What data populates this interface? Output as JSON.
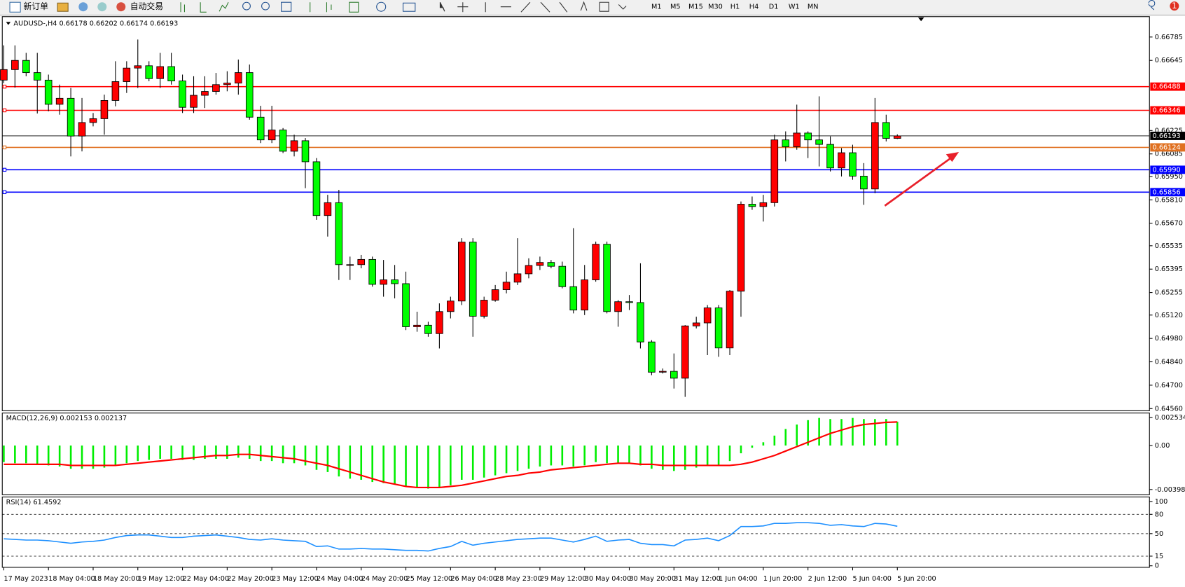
{
  "toolbar": {
    "new_order": "新订单",
    "auto_trading": "自动交易",
    "timeframes": [
      "M1",
      "M5",
      "M15",
      "M30",
      "H1",
      "H4",
      "D1",
      "W1",
      "MN"
    ],
    "badge": 1
  },
  "chart_data": [
    {
      "type": "candlestick",
      "title": "AUDUSD-,H4",
      "up_color": "#ff0000",
      "down_color": "#00ff00",
      "categories": [
        "17 May 2023",
        null,
        null,
        null,
        "18 May 04:00",
        null,
        null,
        null,
        "18 May 20:00",
        null,
        null,
        null,
        "19 May 12:00",
        null,
        null,
        null,
        "22 May 04:00",
        null,
        null,
        null,
        "22 May 20:00",
        null,
        null,
        null,
        "23 May 12:00",
        null,
        null,
        null,
        "24 May 04:00",
        null,
        null,
        null,
        "24 May 20:00",
        null,
        null,
        null,
        "25 May 12:00",
        null,
        null,
        null,
        "26 May 04:00",
        null,
        null,
        null,
        "28 May 23:00",
        null,
        null,
        null,
        "29 May 12:00",
        null,
        null,
        null,
        "30 May 04:00",
        null,
        null,
        null,
        "30 May 20:00",
        null,
        null,
        null,
        "31 May 12:00",
        null,
        null,
        null,
        "1 Jun 04:00",
        null,
        null,
        null,
        "1 Jun 20:00",
        null,
        null,
        null,
        "2 Jun 12:00",
        null,
        null,
        null,
        "5 Jun 04:00",
        null,
        null,
        null,
        "5 Jun 20:00"
      ],
      "open": [
        0.66527,
        0.6659,
        0.66645,
        0.66572,
        0.66527,
        0.66382,
        0.66418,
        0.66192,
        0.66273,
        0.66296,
        0.66405,
        0.66518,
        0.66599,
        0.66613,
        0.66536,
        0.66608,
        0.66522,
        0.66364,
        0.66436,
        0.66459,
        0.665,
        0.66509,
        0.66572,
        0.66305,
        0.66169,
        0.66228,
        0.66101,
        0.66164,
        0.66038,
        0.65716,
        0.65793,
        0.65422,
        0.65422,
        0.65453,
        0.65304,
        0.65331,
        0.65308,
        0.6505,
        0.65059,
        0.65009,
        0.65141,
        0.65204,
        0.65557,
        0.65113,
        0.65209,
        0.65272,
        0.65317,
        0.65367,
        0.65417,
        0.65435,
        0.65412,
        0.6529,
        0.6515,
        0.65331,
        0.65544,
        0.65141,
        0.652,
        0.65195,
        0.64959,
        0.64778,
        0.64783,
        0.64742,
        0.65055,
        0.65073,
        0.65163,
        0.64923,
        0.65263,
        0.65784,
        0.6577,
        0.65793,
        0.66169,
        0.66128,
        0.6621,
        0.66169,
        0.66142,
        0.66001,
        0.66092,
        0.65952,
        0.65875,
        0.66273,
        0.66178
      ],
      "high": [
        0.66735,
        0.66735,
        0.6669,
        0.6669,
        0.6656,
        0.665,
        0.6648,
        0.6642,
        0.6633,
        0.6644,
        0.6664,
        0.6664,
        0.6677,
        0.6664,
        0.6669,
        0.6669,
        0.6656,
        0.6655,
        0.6655,
        0.6657,
        0.6658,
        0.6665,
        0.6662,
        0.66373,
        0.66373,
        0.6624,
        0.662,
        0.6618,
        0.6606,
        0.6584,
        0.6587,
        0.6547,
        0.6548,
        0.6547,
        0.6545,
        0.6542,
        0.6538,
        0.6514,
        0.6508,
        0.6519,
        0.6523,
        0.6558,
        0.6558,
        0.6523,
        0.653,
        0.6538,
        0.6558,
        0.6546,
        0.6547,
        0.6545,
        0.6544,
        0.6564,
        0.6542,
        0.6556,
        0.6556,
        0.6521,
        0.6524,
        0.6543,
        0.6497,
        0.648,
        0.6489,
        0.6506,
        0.6511,
        0.6518,
        0.6518,
        0.6527,
        0.658,
        0.6583,
        0.6584,
        0.662,
        0.6622,
        0.6638,
        0.6622,
        0.6643,
        0.6619,
        0.6612,
        0.6614,
        0.6603,
        0.6642,
        0.6632,
        0.66202
      ],
      "low": [
        0.66509,
        0.66482,
        0.6655,
        0.66327,
        0.6634,
        0.6632,
        0.6607,
        0.661,
        0.6625,
        0.662,
        0.6637,
        0.6645,
        0.6648,
        0.6652,
        0.6648,
        0.665,
        0.6633,
        0.6633,
        0.6636,
        0.6644,
        0.6646,
        0.6644,
        0.6629,
        0.6615,
        0.6615,
        0.6609,
        0.6607,
        0.6588,
        0.6569,
        0.6559,
        0.6533,
        0.6533,
        0.654,
        0.6529,
        0.6523,
        0.6522,
        0.6503,
        0.6502,
        0.6499,
        0.6492,
        0.651,
        0.6518,
        0.6499,
        0.651,
        0.652,
        0.6525,
        0.653,
        0.6534,
        0.6539,
        0.654,
        0.6528,
        0.6513,
        0.6512,
        0.6532,
        0.6513,
        0.6505,
        0.6515,
        0.6492,
        0.6476,
        0.6477,
        0.6468,
        0.6463,
        0.6504,
        0.6488,
        0.6487,
        0.6488,
        0.6511,
        0.6575,
        0.6568,
        0.6577,
        0.6604,
        0.6611,
        0.6606,
        0.6601,
        0.6598,
        0.6595,
        0.6593,
        0.6578,
        0.6585,
        0.6616,
        0.66174
      ],
      "close": [
        0.6659,
        0.66645,
        0.66572,
        0.66527,
        0.66382,
        0.66418,
        0.66192,
        0.66273,
        0.66296,
        0.66405,
        0.66518,
        0.66599,
        0.66613,
        0.66536,
        0.66608,
        0.66522,
        0.66364,
        0.66436,
        0.66459,
        0.665,
        0.66509,
        0.66572,
        0.66305,
        0.66169,
        0.66228,
        0.66101,
        0.66164,
        0.66038,
        0.65716,
        0.65793,
        0.65422,
        0.65422,
        0.65453,
        0.65304,
        0.65331,
        0.65308,
        0.6505,
        0.65059,
        0.65009,
        0.65141,
        0.65204,
        0.65557,
        0.65113,
        0.65209,
        0.65272,
        0.65317,
        0.65367,
        0.65417,
        0.65435,
        0.65412,
        0.6529,
        0.6515,
        0.65331,
        0.65544,
        0.65141,
        0.652,
        0.65195,
        0.64959,
        0.64778,
        0.64783,
        0.64742,
        0.65055,
        0.65073,
        0.65163,
        0.64923,
        0.65263,
        0.65784,
        0.6577,
        0.65793,
        0.66169,
        0.66128,
        0.6621,
        0.66169,
        0.66142,
        0.66001,
        0.66092,
        0.65952,
        0.65875,
        0.66273,
        0.66178,
        0.66193
      ],
      "ylim": [
        0.64547,
        0.66907
      ],
      "yticks": [
        0.66785,
        0.66645,
        0.66225,
        0.66085,
        {
          "value": 0.6595,
          "label": "0.65950"
        },
        {
          "value": 0.6581,
          "label": "0.65810"
        },
        {
          "value": 0.6567,
          "label": "0.65670"
        },
        0.65535,
        0.65395,
        0.65255,
        {
          "value": 0.6512,
          "label": "0.65120"
        },
        {
          "value": 0.6498,
          "label": "0.64980"
        },
        {
          "value": 0.6484,
          "label": "0.64840"
        },
        {
          "value": 0.647,
          "label": "0.64700"
        },
        {
          "value": 0.6456,
          "label": "0.64560"
        }
      ],
      "levels": [
        {
          "value": 0.66488,
          "color": "#ff0000"
        },
        {
          "value": 0.66346,
          "color": "#ff0000"
        },
        {
          "value": 0.66124,
          "color": "#e07020"
        },
        {
          "value": 0.6599,
          "label": "0.65990",
          "color": "#0000ff"
        },
        {
          "value": 0.65856,
          "color": "#0000ff"
        }
      ],
      "price_line_color": "#000000"
    },
    {
      "type": "macd",
      "title": "MACD(12,26,9)",
      "histogram": {
        "color": "#00ee00",
        "values": [
          -0.0015,
          -0.0016,
          -0.0016,
          -0.0017,
          -0.0018,
          -0.0019,
          -0.0021,
          -0.0021,
          -0.0021,
          -0.002,
          -0.0018,
          -0.0016,
          -0.0014,
          -0.0013,
          -0.0012,
          -0.0012,
          -0.0013,
          -0.0013,
          -0.0012,
          -0.0012,
          -0.0012,
          -0.0011,
          -0.0012,
          -0.0014,
          -0.0014,
          -0.0016,
          -0.0016,
          -0.0018,
          -0.0022,
          -0.0024,
          -0.0028,
          -0.003,
          -0.0031,
          -0.0033,
          -0.0034,
          -0.0035,
          -0.0037,
          -0.0038,
          -0.0039,
          -0.0038,
          -0.0036,
          -0.0031,
          -0.0031,
          -0.0029,
          -0.0027,
          -0.0025,
          -0.0023,
          -0.0021,
          -0.0019,
          -0.0018,
          -0.0018,
          -0.0019,
          -0.0018,
          -0.0015,
          -0.0016,
          -0.0016,
          -0.0016,
          -0.0018,
          -0.0021,
          -0.0022,
          -0.0023,
          -0.0022,
          -0.002,
          -0.0018,
          -0.0018,
          -0.0014,
          -0.0007,
          -0.0002,
          0.0003,
          0.0009,
          0.0015,
          0.0019,
          0.0023,
          0.0025,
          0.0024,
          0.0024,
          0.0025,
          0.0024,
          0.0024,
          0.0024,
          0.002153
        ]
      },
      "signal": {
        "color": "#ff0000",
        "values": [
          -0.0017,
          -0.0017,
          -0.0017,
          -0.0017,
          -0.0017,
          -0.0017,
          -0.0018,
          -0.0018,
          -0.0018,
          -0.0018,
          -0.0018,
          -0.0017,
          -0.0016,
          -0.0015,
          -0.0014,
          -0.0013,
          -0.0012,
          -0.0011,
          -0.001,
          -0.0009,
          -0.0009,
          -0.0008,
          -0.0008,
          -0.0009,
          -0.001,
          -0.0011,
          -0.0012,
          -0.0014,
          -0.0016,
          -0.0018,
          -0.0021,
          -0.0024,
          -0.0027,
          -0.003,
          -0.0033,
          -0.0035,
          -0.0037,
          -0.0038,
          -0.0038,
          -0.0038,
          -0.0037,
          -0.0036,
          -0.0034,
          -0.0032,
          -0.003,
          -0.0028,
          -0.0027,
          -0.0025,
          -0.0024,
          -0.0022,
          -0.0021,
          -0.002,
          -0.0019,
          -0.0018,
          -0.0017,
          -0.0016,
          -0.0016,
          -0.0017,
          -0.0017,
          -0.0018,
          -0.0018,
          -0.0018,
          -0.0018,
          -0.0018,
          -0.0018,
          -0.0018,
          -0.0017,
          -0.0015,
          -0.0012,
          -0.0009,
          -0.0005,
          -0.0001,
          0.0003,
          0.0007,
          0.0011,
          0.0014,
          0.0017,
          0.0019,
          0.002,
          0.0021,
          0.002137
        ]
      },
      "ylim": [
        -0.004452,
        0.002945
      ],
      "yticks": [
        0.002534,
        {
          "value": 0,
          "label": "0.00"
        },
        -0.003981
      ]
    },
    {
      "type": "line",
      "title": "RSI(14)",
      "color": "#1e90ff",
      "values": [
        42,
        41,
        40,
        40,
        39,
        37,
        35,
        37,
        38,
        40,
        44,
        47,
        48,
        48,
        46,
        44,
        44,
        46,
        47,
        48,
        46,
        44,
        41,
        40,
        42,
        40,
        39,
        38,
        30,
        31,
        26,
        26,
        27,
        26,
        26,
        25,
        24,
        24,
        23,
        27,
        30,
        38,
        32,
        35,
        37,
        39,
        41,
        42,
        43,
        43,
        40,
        37,
        41,
        46,
        38,
        40,
        41,
        35,
        33,
        33,
        31,
        40,
        41,
        43,
        39,
        47,
        61,
        61,
        62,
        66,
        66,
        67,
        67,
        66,
        63,
        64,
        62,
        61,
        66,
        65,
        61.4592
      ],
      "ylim": [
        -2.4,
        107
      ],
      "yticks": [
        100,
        80,
        50,
        15,
        0
      ],
      "levels": [
        80,
        50,
        15
      ]
    }
  ]
}
